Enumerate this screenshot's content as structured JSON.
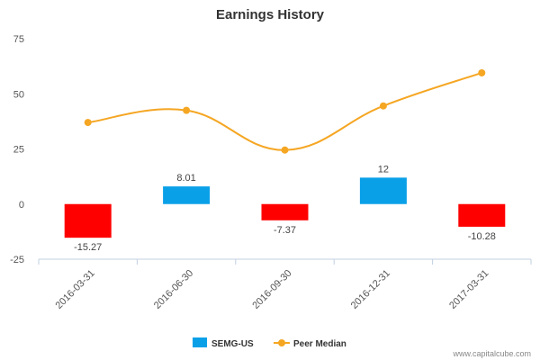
{
  "chart_data": {
    "type": "bar",
    "title": "Earnings History",
    "categories": [
      "2016-03-31",
      "2016-06-30",
      "2016-09-30",
      "2016-12-31",
      "2017-03-31"
    ],
    "series": [
      {
        "name": "SEMG-US",
        "type": "bar",
        "values": [
          -15.27,
          8.01,
          -7.37,
          12,
          -10.28
        ],
        "labels": [
          "-15.27",
          "8.01",
          "-7.37",
          "12",
          "-10.28"
        ],
        "color_positive": "#0aa0e8",
        "color_negative": "#ff0000"
      },
      {
        "name": "Peer Median",
        "type": "line",
        "values": [
          37,
          42.5,
          24.5,
          44.5,
          59.5
        ],
        "color": "#f5a623"
      }
    ],
    "yticks": [
      75,
      50,
      25,
      0,
      -25
    ],
    "ylim": [
      -25,
      75
    ],
    "xlabel": "",
    "ylabel": "",
    "grid": false,
    "legend_position": "bottom"
  },
  "credit": "www.capitalcube.com"
}
